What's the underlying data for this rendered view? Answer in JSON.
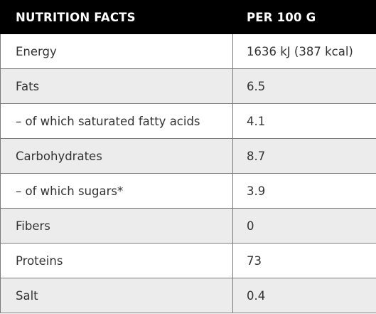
{
  "table": {
    "headers": [
      "NUTRITION FACTS",
      "PER 100 G"
    ],
    "rows": [
      [
        "Energy",
        "1636 kJ (387 kcal)"
      ],
      [
        "Fats",
        "6.5"
      ],
      [
        "– of which saturated fatty acids",
        "4.1"
      ],
      [
        "Carbohydrates",
        "8.7"
      ],
      [
        "– of which sugars*",
        "3.9"
      ],
      [
        "Fibers",
        "0"
      ],
      [
        "Proteins",
        "73"
      ],
      [
        "Salt",
        "0.4"
      ]
    ]
  },
  "colors": {
    "header_bg": "#000000",
    "header_text": "#ffffff",
    "row_alt_bg": "#ececec",
    "row_bg": "#ffffff",
    "border": "#7a7a7a",
    "text": "#333333"
  }
}
